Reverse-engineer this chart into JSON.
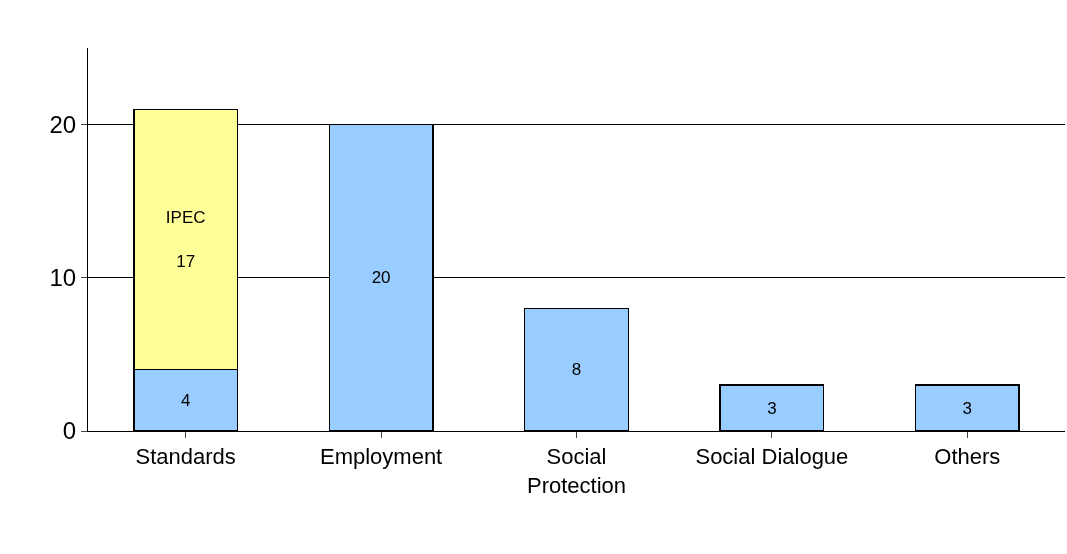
{
  "chart_data": {
    "type": "bar",
    "stacked": true,
    "categories": [
      "Standards",
      "Employment",
      "Social\nProtection",
      "Social Dialogue",
      "Others"
    ],
    "series": [
      {
        "color": "#99ccff",
        "values": [
          4,
          20,
          8,
          3,
          3
        ]
      },
      {
        "name": "IPEC",
        "color": "#ffff99",
        "values": [
          17,
          null,
          null,
          null,
          null
        ]
      }
    ],
    "data_labels": true,
    "ylim": [
      0,
      25
    ],
    "yticks": [
      0,
      10,
      20
    ],
    "grid": "y",
    "legend": false
  }
}
